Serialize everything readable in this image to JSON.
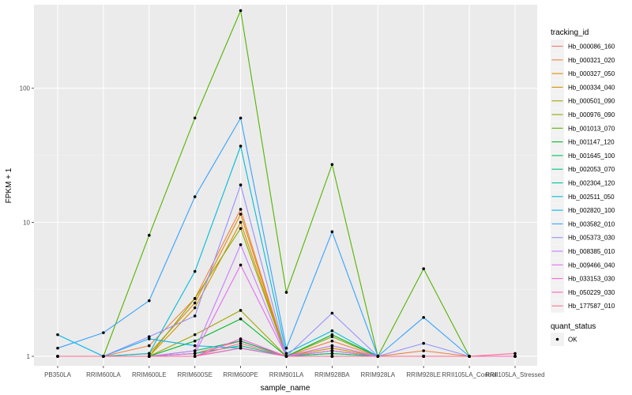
{
  "chart_data": {
    "type": "line",
    "xlabel": "sample_name",
    "ylabel": "FPKM + 1",
    "yscale": "log10",
    "ylim": [
      0.85,
      420
    ],
    "yticks": [
      1,
      10,
      100
    ],
    "ytick_labels": [
      "1",
      "10",
      "100"
    ],
    "grid": true,
    "legend_position": "right",
    "categories": [
      "PB350LA",
      "RRIM600LA",
      "RRIM600LE",
      "RRIM600SE",
      "RRIM600PE",
      "RRIM901LA",
      "RRIM928BA",
      "RRIM928LA",
      "RRIM928LE",
      "RRII105LA_Control",
      "RRII105LA_Stressed"
    ],
    "legend_title": "tracking_id",
    "series": [
      {
        "name": "Hb_000086_160",
        "color": "#f8766d",
        "values": [
          1.0,
          1.0,
          1.0,
          1.05,
          1.3,
          1.0,
          1.1,
          1.0,
          1.0,
          1.0,
          1.0
        ]
      },
      {
        "name": "Hb_000321_020",
        "color": "#ee8044",
        "values": [
          1.0,
          1.0,
          1.2,
          2.7,
          12.5,
          1.0,
          1.3,
          1.0,
          1.1,
          1.0,
          1.0
        ]
      },
      {
        "name": "Hb_000327_050",
        "color": "#e28900",
        "values": [
          1.0,
          1.0,
          1.05,
          2.5,
          11.5,
          1.0,
          1.2,
          1.0,
          1.0,
          1.0,
          1.0
        ]
      },
      {
        "name": "Hb_000334_040",
        "color": "#d39200",
        "values": [
          1.0,
          1.0,
          1.0,
          2.3,
          10.0,
          1.0,
          1.15,
          1.0,
          1.0,
          1.0,
          1.0
        ]
      },
      {
        "name": "Hb_000501_090",
        "color": "#a3a500",
        "values": [
          1.0,
          1.0,
          1.0,
          1.45,
          2.2,
          1.0,
          1.05,
          1.0,
          1.0,
          1.0,
          1.0
        ]
      },
      {
        "name": "Hb_000976_090",
        "color": "#8eab00",
        "values": [
          1.0,
          1.0,
          1.0,
          2.7,
          9.0,
          1.0,
          1.4,
          1.0,
          1.0,
          1.0,
          1.0
        ]
      },
      {
        "name": "Hb_001013_070",
        "color": "#53b400",
        "values": [
          1.0,
          1.0,
          8.0,
          60.0,
          380.0,
          3.0,
          27.0,
          1.0,
          4.5,
          1.0,
          1.0
        ]
      },
      {
        "name": "Hb_001147_120",
        "color": "#00b929",
        "values": [
          1.0,
          1.0,
          1.0,
          1.3,
          1.9,
          1.0,
          1.45,
          1.0,
          1.0,
          1.0,
          1.0
        ]
      },
      {
        "name": "Hb_001645_100",
        "color": "#00bc56",
        "values": [
          1.0,
          1.0,
          1.0,
          1.1,
          1.3,
          1.0,
          1.1,
          1.0,
          1.0,
          1.0,
          1.0
        ]
      },
      {
        "name": "Hb_002053_070",
        "color": "#00bf7d",
        "values": [
          1.0,
          1.0,
          1.0,
          1.05,
          1.2,
          1.0,
          1.05,
          1.0,
          1.0,
          1.0,
          1.0
        ]
      },
      {
        "name": "Hb_002304_120",
        "color": "#00c0a0",
        "values": [
          1.0,
          1.0,
          1.0,
          1.0,
          1.15,
          1.0,
          1.0,
          1.0,
          1.0,
          1.0,
          1.0
        ]
      },
      {
        "name": "Hb_002511_050",
        "color": "#00bcd8",
        "values": [
          1.0,
          1.0,
          1.05,
          4.3,
          37.0,
          1.05,
          1.55,
          1.0,
          1.0,
          1.0,
          1.0
        ]
      },
      {
        "name": "Hb_002820_100",
        "color": "#00b5ee",
        "values": [
          1.45,
          1.0,
          1.35,
          1.2,
          1.15,
          1.0,
          1.0,
          1.0,
          1.0,
          1.0,
          1.0
        ]
      },
      {
        "name": "Hb_003582_010",
        "color": "#35a2ff",
        "values": [
          1.15,
          1.5,
          2.6,
          15.5,
          60.0,
          1.15,
          8.5,
          1.0,
          1.95,
          1.0,
          1.0
        ]
      },
      {
        "name": "Hb_005373_030",
        "color": "#9590ff",
        "values": [
          1.0,
          1.0,
          1.4,
          2.0,
          19.0,
          1.0,
          2.1,
          1.0,
          1.25,
          1.0,
          1.0
        ]
      },
      {
        "name": "Hb_008385_010",
        "color": "#c77cff",
        "values": [
          1.0,
          1.0,
          1.0,
          1.1,
          6.8,
          1.0,
          1.2,
          1.0,
          1.0,
          1.0,
          1.0
        ]
      },
      {
        "name": "Hb_009466_040",
        "color": "#e76bf3",
        "values": [
          1.0,
          1.0,
          1.0,
          1.05,
          4.8,
          1.0,
          1.1,
          1.0,
          1.0,
          1.0,
          1.0
        ]
      },
      {
        "name": "Hb_033153_030",
        "color": "#fa62db",
        "values": [
          1.0,
          1.0,
          1.0,
          1.0,
          1.35,
          1.0,
          1.0,
          1.0,
          1.0,
          1.0,
          1.0
        ]
      },
      {
        "name": "Hb_050229_030",
        "color": "#ff62bc",
        "values": [
          1.0,
          1.0,
          1.0,
          1.0,
          1.15,
          1.0,
          1.0,
          1.0,
          1.0,
          1.0,
          1.0
        ]
      },
      {
        "name": "Hb_177587_010",
        "color": "#ff6c91",
        "values": [
          1.0,
          1.0,
          1.0,
          1.0,
          1.25,
          1.0,
          1.0,
          1.0,
          1.0,
          1.0,
          1.05
        ]
      }
    ],
    "shape_legend": {
      "title": "quant_status",
      "items": [
        "OK"
      ]
    }
  }
}
